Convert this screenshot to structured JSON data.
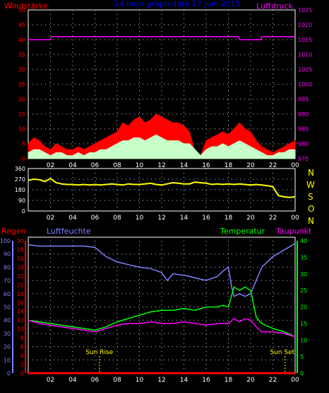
{
  "header": {
    "left_title": "Windstärke",
    "center_title": "24 hour graph data  17 Juni 2015",
    "right_title": "Luftdruck"
  },
  "colors": {
    "background": "#000000",
    "frame": "#ffffff",
    "grid": "#ffffff",
    "wind_gust": "#ff0000",
    "wind_avg": "#c8ffc8",
    "pressure": "#ff00ff",
    "direction": "#ffff00",
    "rain": "#ff0000",
    "humidity": "#8080ff",
    "temperature": "#00ff00",
    "dewpoint": "#ff00ff",
    "sun": "#ffff00",
    "left_axis_wind": "#ff0000",
    "right_axis_pressure": "#ff00ff",
    "axis_rain": "#ff0000",
    "axis_humidity": "#8080ff",
    "axis_temp": "#00ff00",
    "dir_letters": "#ffff00"
  },
  "x_ticks": [
    "02",
    "04",
    "06",
    "08",
    "10",
    "12",
    "14",
    "16",
    "18",
    "20",
    "22",
    "00"
  ],
  "direction_letters": [
    "N",
    "W",
    "S",
    "O",
    "N"
  ],
  "labels": {
    "rain": "Regen",
    "humidity": "Luftfeuchte",
    "temperature": "Temperatur",
    "dewpoint": "Taupunkt",
    "sun_rise": "Sun Rise",
    "sun_set": "Sun Set"
  },
  "chart_data": [
    {
      "type": "area",
      "y_left_ticks": [
        "0",
        "5",
        "10",
        "15",
        "20",
        "25",
        "30",
        "35",
        "40",
        "45",
        "50"
      ],
      "y_right_ticks": [
        "975",
        "980",
        "985",
        "990",
        "995",
        "1000",
        "1005",
        "1010",
        "1015",
        "1020",
        "1025"
      ],
      "ylim_left": [
        0,
        50
      ],
      "ylim_right": [
        975,
        1025
      ],
      "xlim_hours": [
        0,
        24
      ],
      "series": [
        {
          "name": "Windstärke",
          "x": [
            0,
            0.5,
            1,
            1.5,
            2,
            2.5,
            3,
            3.5,
            4,
            4.5,
            5,
            5.5,
            6,
            6.5,
            7,
            7.5,
            8,
            8.5,
            9,
            9.5,
            10,
            10.5,
            11,
            11.5,
            12,
            12.5,
            13,
            13.5,
            14,
            14.5,
            15,
            15.5,
            16,
            16.5,
            17,
            17.5,
            18,
            18.5,
            19,
            19.5,
            20,
            20.5,
            21,
            21.5,
            22,
            22.5,
            23,
            23.5,
            24
          ],
          "values": [
            5,
            7,
            6,
            4,
            3,
            5,
            4,
            3,
            3,
            4,
            3,
            4,
            5,
            6,
            7,
            8,
            9,
            12,
            11,
            13,
            14,
            12,
            13,
            15,
            14,
            13,
            12,
            12,
            11,
            9,
            2,
            1,
            6,
            7,
            8,
            9,
            8,
            10,
            12,
            10,
            9,
            6,
            4,
            3,
            2,
            3,
            4,
            5,
            6
          ]
        },
        {
          "name": "Windstärke avg",
          "x": [
            0,
            0.5,
            1,
            1.5,
            2,
            2.5,
            3,
            3.5,
            4,
            4.5,
            5,
            5.5,
            6,
            6.5,
            7,
            7.5,
            8,
            8.5,
            9,
            9.5,
            10,
            10.5,
            11,
            11.5,
            12,
            12.5,
            13,
            13.5,
            14,
            14.5,
            15,
            15.5,
            16,
            16.5,
            17,
            17.5,
            18,
            18.5,
            19,
            19.5,
            20,
            20.5,
            21,
            21.5,
            22,
            22.5,
            23,
            23.5,
            24
          ],
          "values": [
            2,
            3,
            3,
            2,
            1,
            2,
            2,
            1,
            1,
            2,
            1,
            2,
            2,
            3,
            3,
            4,
            5,
            6,
            6,
            7,
            7,
            6,
            7,
            8,
            7,
            6,
            6,
            6,
            5,
            5,
            3,
            1,
            3,
            4,
            4,
            5,
            4,
            5,
            6,
            5,
            4,
            3,
            2,
            1,
            1,
            2,
            2,
            3,
            3
          ]
        },
        {
          "name": "Luftdruck",
          "x": [
            0,
            2,
            2.1,
            18.9,
            19,
            20.9,
            21,
            24
          ],
          "values": [
            1015,
            1015,
            1016,
            1016,
            1015,
            1015,
            1016,
            1016
          ]
        }
      ]
    },
    {
      "type": "line",
      "y_ticks": [
        "0",
        "90",
        "180",
        "270",
        "360"
      ],
      "ylim": [
        0,
        360
      ],
      "xlim_hours": [
        0,
        24
      ],
      "series": [
        {
          "name": "Windrichtung",
          "x": [
            0,
            0.5,
            1,
            1.5,
            2,
            2.5,
            3,
            3.5,
            4,
            4.5,
            5,
            5.5,
            6,
            6.5,
            7,
            7.5,
            8,
            8.5,
            9,
            9.5,
            10,
            10.5,
            11,
            11.5,
            12,
            12.5,
            13,
            13.5,
            14,
            14.5,
            15,
            15.5,
            16,
            16.5,
            17,
            17.5,
            18,
            18.5,
            19,
            19.5,
            20,
            20.5,
            21,
            21.5,
            22,
            22.5,
            23,
            23.5,
            24
          ],
          "values": [
            260,
            270,
            265,
            250,
            275,
            240,
            230,
            225,
            225,
            220,
            225,
            220,
            225,
            220,
            225,
            230,
            225,
            220,
            230,
            225,
            225,
            230,
            235,
            225,
            220,
            230,
            240,
            235,
            230,
            230,
            245,
            240,
            235,
            225,
            230,
            225,
            230,
            225,
            230,
            225,
            220,
            225,
            220,
            215,
            205,
            130,
            120,
            115,
            120
          ]
        }
      ]
    },
    {
      "type": "line",
      "y_rain_ticks": [
        "0",
        "2",
        "4",
        "6",
        "8",
        "10",
        "12",
        "14",
        "16",
        "18",
        "20",
        "22",
        "24",
        "26",
        "28",
        "30"
      ],
      "y_humidity_ticks": [
        "0",
        "10",
        "20",
        "30",
        "40",
        "50",
        "60",
        "70",
        "80",
        "90",
        "100"
      ],
      "y_temp_ticks": [
        "0",
        "5",
        "10",
        "15",
        "20",
        "25",
        "30",
        "35",
        "40"
      ],
      "ylim_rain": [
        0,
        30
      ],
      "ylim_humidity": [
        0,
        100
      ],
      "ylim_temp": [
        0,
        40
      ],
      "xlim_hours": [
        0,
        24
      ],
      "sun_rise_hour": 6.4,
      "sun_set_hour": 23.1,
      "series": [
        {
          "name": "Regen",
          "axis": "rain",
          "x": [
            0,
            24
          ],
          "values": [
            0,
            0
          ]
        },
        {
          "name": "Luftfeuchte",
          "axis": "humidity",
          "x": [
            0,
            1,
            2,
            3,
            4,
            5,
            6,
            7,
            8,
            9,
            10,
            11,
            12,
            12.5,
            13,
            14,
            15,
            16,
            17,
            17.5,
            18,
            18.3,
            18.5,
            19,
            19.5,
            20,
            20.5,
            21,
            22,
            23,
            24
          ],
          "values": [
            97,
            96,
            96,
            96,
            96,
            96,
            95,
            88,
            84,
            82,
            80,
            79,
            76,
            70,
            75,
            74,
            72,
            70,
            73,
            77,
            80,
            65,
            58,
            60,
            58,
            60,
            70,
            80,
            88,
            93,
            98
          ]
        },
        {
          "name": "Temperatur",
          "axis": "temp",
          "x": [
            0,
            1,
            2,
            3,
            4,
            5,
            6,
            7,
            8,
            9,
            10,
            11,
            12,
            13,
            14,
            15,
            16,
            17,
            17.5,
            18,
            18.5,
            19,
            19.5,
            20,
            20.5,
            21,
            22,
            23,
            24
          ],
          "values": [
            16,
            15.5,
            15,
            14.5,
            14,
            13.5,
            13,
            14,
            15.5,
            16.5,
            17.5,
            18.5,
            19,
            19,
            19.5,
            19,
            20,
            20,
            20.5,
            20,
            26,
            25,
            26,
            25,
            17,
            15,
            13.5,
            12.5,
            11
          ]
        },
        {
          "name": "Taupunkt",
          "axis": "temp",
          "x": [
            0,
            1,
            2,
            3,
            4,
            5,
            6,
            7,
            8,
            9,
            10,
            11,
            12,
            13,
            14,
            15,
            16,
            17,
            17.5,
            18,
            18.5,
            19,
            19.5,
            20,
            20.5,
            21,
            22,
            23,
            24
          ],
          "values": [
            16,
            15,
            14.5,
            14,
            13.5,
            13,
            12.5,
            13.5,
            14.5,
            15,
            15,
            15.5,
            15,
            15,
            15.5,
            15,
            14.5,
            15,
            15,
            15,
            16.5,
            15.5,
            16.5,
            16,
            14,
            12.5,
            12.5,
            12,
            11
          ]
        }
      ]
    }
  ]
}
